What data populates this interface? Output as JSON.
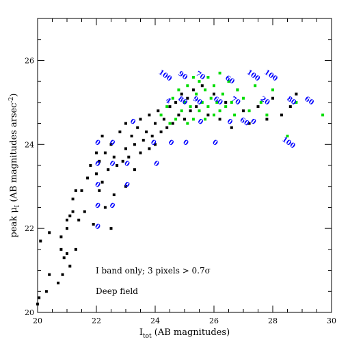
{
  "chart_data": {
    "type": "scatter",
    "xlabel": "I",
    "xlabel_sub": "tot",
    "xlabel_units": "(AB magnitudes)",
    "ylabel_prefix": "peak μ",
    "ylabel_sub": "I",
    "ylabel_units": "(AB magnitudes arsec",
    "ylabel_sup": "-2",
    "ylabel_close": ")",
    "xlim": [
      20,
      30
    ],
    "ylim": [
      20,
      27
    ],
    "x_ticks": [
      20,
      22,
      24,
      26,
      28,
      30
    ],
    "y_ticks": [
      20,
      22,
      24,
      26
    ],
    "x_tick_labels": [
      "20",
      "22",
      "24",
      "26",
      "28",
      "30"
    ],
    "y_tick_labels": [
      "20",
      "22",
      "24",
      "26"
    ],
    "grid": false,
    "notes": [
      "I band only; 3 pixels > 0.7σ",
      "Deep field"
    ],
    "series_colors": {
      "black": "#000000",
      "green": "#00dd00"
    },
    "annotation_color": "#0000ff",
    "series": [
      {
        "color": "black",
        "points": [
          [
            20.0,
            20.2
          ],
          [
            20.05,
            20.35
          ],
          [
            20.1,
            21.7
          ],
          [
            20.3,
            20.5
          ],
          [
            20.4,
            20.9
          ],
          [
            20.4,
            21.9
          ],
          [
            20.7,
            20.7
          ],
          [
            20.8,
            21.5
          ],
          [
            20.8,
            21.8
          ],
          [
            20.85,
            20.9
          ],
          [
            20.9,
            21.3
          ],
          [
            21.0,
            21.4
          ],
          [
            21.0,
            22.0
          ],
          [
            21.0,
            22.2
          ],
          [
            21.1,
            21.1
          ],
          [
            21.1,
            22.3
          ],
          [
            21.2,
            22.4
          ],
          [
            21.2,
            22.7
          ],
          [
            21.3,
            21.5
          ],
          [
            21.3,
            22.9
          ],
          [
            21.4,
            22.2
          ],
          [
            21.5,
            22.9
          ],
          [
            21.6,
            22.4
          ],
          [
            21.7,
            23.2
          ],
          [
            21.8,
            23.5
          ],
          [
            21.9,
            22.1
          ],
          [
            22.0,
            23.3
          ],
          [
            22.0,
            23.8
          ],
          [
            22.1,
            22.9
          ],
          [
            22.1,
            23.6
          ],
          [
            22.2,
            23.1
          ],
          [
            22.2,
            24.2
          ],
          [
            22.3,
            22.5
          ],
          [
            22.3,
            23.8
          ],
          [
            22.4,
            23.4
          ],
          [
            22.5,
            22.0
          ],
          [
            22.5,
            24.0
          ],
          [
            22.6,
            23.7
          ],
          [
            22.6,
            22.8
          ],
          [
            22.7,
            23.5
          ],
          [
            22.8,
            24.3
          ],
          [
            22.9,
            23.6
          ],
          [
            23.0,
            23.0
          ],
          [
            23.0,
            23.9
          ],
          [
            23.0,
            24.5
          ],
          [
            23.1,
            23.7
          ],
          [
            23.2,
            24.2
          ],
          [
            23.3,
            23.4
          ],
          [
            23.3,
            24.0
          ],
          [
            23.4,
            24.4
          ],
          [
            23.5,
            23.8
          ],
          [
            23.5,
            24.6
          ],
          [
            23.6,
            24.1
          ],
          [
            23.7,
            24.3
          ],
          [
            23.8,
            23.9
          ],
          [
            23.8,
            24.7
          ],
          [
            23.9,
            24.2
          ],
          [
            24.0,
            24.5
          ],
          [
            24.0,
            24.0
          ],
          [
            24.1,
            24.8
          ],
          [
            24.2,
            24.3
          ],
          [
            24.3,
            24.6
          ],
          [
            24.4,
            24.4
          ],
          [
            24.5,
            24.9
          ],
          [
            24.6,
            24.5
          ],
          [
            24.7,
            25.0
          ],
          [
            24.8,
            24.7
          ],
          [
            24.9,
            25.2
          ],
          [
            25.0,
            24.6
          ],
          [
            25.1,
            25.1
          ],
          [
            25.2,
            24.8
          ],
          [
            25.3,
            25.3
          ],
          [
            25.4,
            24.9
          ],
          [
            25.6,
            25.4
          ],
          [
            25.8,
            24.7
          ],
          [
            26.0,
            25.2
          ],
          [
            26.2,
            24.6
          ],
          [
            26.4,
            25.0
          ],
          [
            26.6,
            24.4
          ],
          [
            26.8,
            25.3
          ],
          [
            27.0,
            24.8
          ],
          [
            27.2,
            24.5
          ],
          [
            27.5,
            24.9
          ],
          [
            27.8,
            24.6
          ],
          [
            28.0,
            25.1
          ],
          [
            28.3,
            24.7
          ],
          [
            28.6,
            24.9
          ],
          [
            28.8,
            25.2
          ]
        ]
      },
      {
        "color": "green",
        "points": [
          [
            24.2,
            24.7
          ],
          [
            24.4,
            24.9
          ],
          [
            24.5,
            24.5
          ],
          [
            24.6,
            25.1
          ],
          [
            24.7,
            24.6
          ],
          [
            24.8,
            25.3
          ],
          [
            24.9,
            24.8
          ],
          [
            25.0,
            25.0
          ],
          [
            25.1,
            24.5
          ],
          [
            25.1,
            25.4
          ],
          [
            25.2,
            24.9
          ],
          [
            25.3,
            25.6
          ],
          [
            25.3,
            24.6
          ],
          [
            25.4,
            25.2
          ],
          [
            25.5,
            24.8
          ],
          [
            25.5,
            25.5
          ],
          [
            25.6,
            25.0
          ],
          [
            25.7,
            24.6
          ],
          [
            25.7,
            25.3
          ],
          [
            25.8,
            24.9
          ],
          [
            25.8,
            25.6
          ],
          [
            25.9,
            25.1
          ],
          [
            26.0,
            24.7
          ],
          [
            26.0,
            25.4
          ],
          [
            26.1,
            25.0
          ],
          [
            26.2,
            25.7
          ],
          [
            26.2,
            24.8
          ],
          [
            26.3,
            25.2
          ],
          [
            26.4,
            24.9
          ],
          [
            26.5,
            25.5
          ],
          [
            26.6,
            25.0
          ],
          [
            26.7,
            24.7
          ],
          [
            26.8,
            25.3
          ],
          [
            27.0,
            25.1
          ],
          [
            27.2,
            24.8
          ],
          [
            27.4,
            25.4
          ],
          [
            27.6,
            25.0
          ],
          [
            27.8,
            24.7
          ],
          [
            28.0,
            25.3
          ],
          [
            28.5,
            24.2
          ],
          [
            28.8,
            25.0
          ],
          [
            29.7,
            24.7
          ]
        ]
      }
    ],
    "annotations": [
      {
        "text": "100",
        "x": 24.3,
        "y": 25.6
      },
      {
        "text": "90",
        "x": 24.9,
        "y": 25.6
      },
      {
        "text": "70",
        "x": 25.5,
        "y": 25.6
      },
      {
        "text": "60",
        "x": 26.5,
        "y": 25.5
      },
      {
        "text": "100",
        "x": 27.3,
        "y": 25.6
      },
      {
        "text": "100",
        "x": 27.9,
        "y": 25.6
      },
      {
        "text": "80",
        "x": 28.6,
        "y": 25.0
      },
      {
        "text": "60",
        "x": 29.2,
        "y": 25.0
      },
      {
        "text": "100",
        "x": 28.5,
        "y": 24.0
      },
      {
        "text": "4",
        "x": 24.4,
        "y": 25.0
      },
      {
        "text": "80",
        "x": 24.9,
        "y": 25.0
      },
      {
        "text": "90",
        "x": 25.4,
        "y": 25.0
      },
      {
        "text": "60",
        "x": 26.1,
        "y": 25.0
      },
      {
        "text": "70",
        "x": 26.7,
        "y": 25.0
      },
      {
        "text": "20",
        "x": 27.7,
        "y": 25.0
      },
      {
        "text": "0",
        "x": 23.2,
        "y": 24.5
      },
      {
        "text": "0",
        "x": 23.9,
        "y": 24.0
      },
      {
        "text": "0",
        "x": 24.5,
        "y": 24.0
      },
      {
        "text": "0",
        "x": 25.0,
        "y": 24.0
      },
      {
        "text": "0",
        "x": 26.0,
        "y": 24.0
      },
      {
        "text": "0",
        "x": 22.0,
        "y": 24.0
      },
      {
        "text": "0",
        "x": 22.5,
        "y": 24.0
      },
      {
        "text": "0",
        "x": 23.0,
        "y": 23.5
      },
      {
        "text": "0",
        "x": 24.0,
        "y": 23.5
      },
      {
        "text": "0",
        "x": 22.0,
        "y": 23.5
      },
      {
        "text": "0",
        "x": 22.5,
        "y": 23.5
      },
      {
        "text": "0",
        "x": 22.0,
        "y": 23.0
      },
      {
        "text": "0",
        "x": 23.0,
        "y": 23.0
      },
      {
        "text": "0",
        "x": 22.0,
        "y": 22.5
      },
      {
        "text": "0",
        "x": 22.5,
        "y": 22.5
      },
      {
        "text": "0",
        "x": 22.0,
        "y": 22.0
      },
      {
        "text": "0",
        "x": 25.5,
        "y": 24.5
      },
      {
        "text": "0",
        "x": 26.5,
        "y": 24.5
      },
      {
        "text": "0",
        "x": 27.3,
        "y": 24.5
      },
      {
        "text": "60",
        "x": 27.0,
        "y": 24.5
      }
    ]
  }
}
